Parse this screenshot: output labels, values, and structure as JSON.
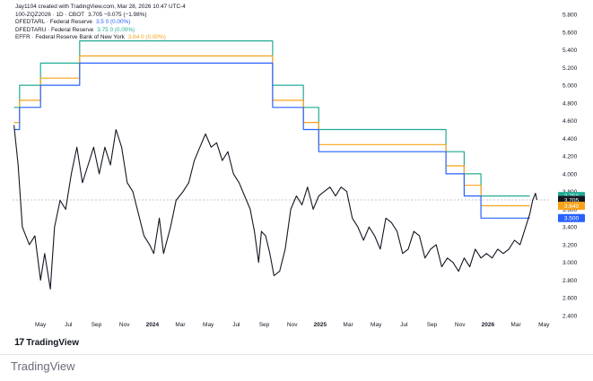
{
  "header": {
    "credit": "Jay1104 created with TradingView.com, Mar 28, 2026 10:47 UTC-4"
  },
  "legend": [
    {
      "label": "100-ZQZ2026 · 1D · CBOT",
      "value": "3.705 −0.075 (−1.98%)",
      "color": "#131722"
    },
    {
      "label": "DFEDTARL · Federal Reserve",
      "value": "3.5 0 (0.00%)",
      "color": "#2962ff"
    },
    {
      "label": "DFEDTARU · Federal Reserve",
      "value": "3.75 0 (0.00%)",
      "color": "#22ab94"
    },
    {
      "label": "EFFR · Federal Reserve Bank of New York",
      "value": "3.64 0 (0.00%)",
      "color": "#f7a21b"
    }
  ],
  "footer": {
    "logo_text": "TradingView",
    "logo_mark": "17",
    "wordmark": "TradingView"
  },
  "chart_data": {
    "type": "line",
    "ylim": [
      2.4,
      5.8
    ],
    "y_ticks": [
      "5.800",
      "5.600",
      "5.400",
      "5.200",
      "5.000",
      "4.800",
      "4.600",
      "4.400",
      "4.200",
      "4.000",
      "3.800",
      "3.600",
      "3.400",
      "3.200",
      "3.000",
      "2.800",
      "2.600",
      "2.400"
    ],
    "x_range": [
      0,
      38.5
    ],
    "x_ticks": [
      {
        "t": 2,
        "label": "May"
      },
      {
        "t": 4,
        "label": "Jul"
      },
      {
        "t": 6,
        "label": "Sep"
      },
      {
        "t": 8,
        "label": "Nov"
      },
      {
        "t": 10,
        "label": "2024"
      },
      {
        "t": 12,
        "label": "Mar"
      },
      {
        "t": 14,
        "label": "May"
      },
      {
        "t": 16,
        "label": "Jul"
      },
      {
        "t": 18,
        "label": "Sep"
      },
      {
        "t": 20,
        "label": "Nov"
      },
      {
        "t": 22,
        "label": "2025"
      },
      {
        "t": 24,
        "label": "Mar"
      },
      {
        "t": 26,
        "label": "May"
      },
      {
        "t": 28,
        "label": "Jul"
      },
      {
        "t": 30,
        "label": "Sep"
      },
      {
        "t": 32,
        "label": "Nov"
      },
      {
        "t": 34,
        "label": "2026"
      },
      {
        "t": 36,
        "label": "Mar"
      },
      {
        "t": 38,
        "label": "May"
      }
    ],
    "series": [
      {
        "name": "DFEDTARU",
        "color": "#22ab94",
        "step": true,
        "points": [
          [
            0.1,
            4.75
          ],
          [
            0.5,
            4.75
          ],
          [
            0.5,
            5.0
          ],
          [
            2.0,
            5.0
          ],
          [
            2.0,
            5.25
          ],
          [
            4.8,
            5.25
          ],
          [
            4.8,
            5.5
          ],
          [
            18.6,
            5.5
          ],
          [
            18.6,
            5.0
          ],
          [
            20.8,
            5.0
          ],
          [
            20.8,
            4.75
          ],
          [
            21.9,
            4.75
          ],
          [
            21.9,
            4.5
          ],
          [
            31.0,
            4.5
          ],
          [
            31.0,
            4.25
          ],
          [
            32.3,
            4.25
          ],
          [
            32.3,
            4.0
          ],
          [
            33.5,
            4.0
          ],
          [
            33.5,
            3.75
          ],
          [
            37.0,
            3.75
          ]
        ]
      },
      {
        "name": "EFFR",
        "color": "#f7a21b",
        "step": true,
        "points": [
          [
            0.1,
            4.58
          ],
          [
            0.5,
            4.58
          ],
          [
            0.5,
            4.83
          ],
          [
            2.0,
            4.83
          ],
          [
            2.0,
            5.08
          ],
          [
            4.8,
            5.08
          ],
          [
            4.8,
            5.33
          ],
          [
            18.6,
            5.33
          ],
          [
            18.6,
            4.83
          ],
          [
            20.8,
            4.83
          ],
          [
            20.8,
            4.58
          ],
          [
            21.9,
            4.58
          ],
          [
            21.9,
            4.33
          ],
          [
            31.0,
            4.33
          ],
          [
            31.0,
            4.09
          ],
          [
            32.3,
            4.09
          ],
          [
            32.3,
            3.87
          ],
          [
            33.5,
            3.87
          ],
          [
            33.5,
            3.64
          ],
          [
            37.0,
            3.64
          ]
        ]
      },
      {
        "name": "DFEDTARL",
        "color": "#2962ff",
        "step": true,
        "points": [
          [
            0.1,
            4.5
          ],
          [
            0.5,
            4.5
          ],
          [
            0.5,
            4.75
          ],
          [
            2.0,
            4.75
          ],
          [
            2.0,
            5.0
          ],
          [
            4.8,
            5.0
          ],
          [
            4.8,
            5.25
          ],
          [
            18.6,
            5.25
          ],
          [
            18.6,
            4.75
          ],
          [
            20.8,
            4.75
          ],
          [
            20.8,
            4.5
          ],
          [
            21.9,
            4.5
          ],
          [
            21.9,
            4.25
          ],
          [
            31.0,
            4.25
          ],
          [
            31.0,
            4.0
          ],
          [
            32.3,
            4.0
          ],
          [
            32.3,
            3.75
          ],
          [
            33.5,
            3.75
          ],
          [
            33.5,
            3.5
          ],
          [
            37.0,
            3.5
          ]
        ]
      },
      {
        "name": "100-ZQZ2026",
        "color": "#131722",
        "step": false,
        "points": [
          [
            0.1,
            4.55
          ],
          [
            0.4,
            4.1
          ],
          [
            0.7,
            3.4
          ],
          [
            1.2,
            3.2
          ],
          [
            1.6,
            3.3
          ],
          [
            2.0,
            2.8
          ],
          [
            2.3,
            3.1
          ],
          [
            2.7,
            2.7
          ],
          [
            3.0,
            3.4
          ],
          [
            3.4,
            3.7
          ],
          [
            3.8,
            3.6
          ],
          [
            4.2,
            4.0
          ],
          [
            4.6,
            4.3
          ],
          [
            5.0,
            3.9
          ],
          [
            5.4,
            4.1
          ],
          [
            5.8,
            4.3
          ],
          [
            6.2,
            4.0
          ],
          [
            6.6,
            4.3
          ],
          [
            7.0,
            4.1
          ],
          [
            7.4,
            4.5
          ],
          [
            7.8,
            4.3
          ],
          [
            8.2,
            3.9
          ],
          [
            8.6,
            3.8
          ],
          [
            9.0,
            3.55
          ],
          [
            9.4,
            3.3
          ],
          [
            9.8,
            3.2
          ],
          [
            10.1,
            3.1
          ],
          [
            10.5,
            3.5
          ],
          [
            10.8,
            3.1
          ],
          [
            11.3,
            3.4
          ],
          [
            11.7,
            3.7
          ],
          [
            12.2,
            3.8
          ],
          [
            12.6,
            3.9
          ],
          [
            13.0,
            4.15
          ],
          [
            13.4,
            4.3
          ],
          [
            13.8,
            4.45
          ],
          [
            14.2,
            4.3
          ],
          [
            14.6,
            4.35
          ],
          [
            15.0,
            4.15
          ],
          [
            15.4,
            4.25
          ],
          [
            15.8,
            4.0
          ],
          [
            16.2,
            3.9
          ],
          [
            16.6,
            3.75
          ],
          [
            17.0,
            3.6
          ],
          [
            17.3,
            3.35
          ],
          [
            17.6,
            3.0
          ],
          [
            17.8,
            3.35
          ],
          [
            18.1,
            3.3
          ],
          [
            18.4,
            3.1
          ],
          [
            18.7,
            2.85
          ],
          [
            19.1,
            2.9
          ],
          [
            19.5,
            3.15
          ],
          [
            19.9,
            3.6
          ],
          [
            20.3,
            3.75
          ],
          [
            20.7,
            3.65
          ],
          [
            21.1,
            3.85
          ],
          [
            21.5,
            3.6
          ],
          [
            21.9,
            3.75
          ],
          [
            22.3,
            3.8
          ],
          [
            22.7,
            3.85
          ],
          [
            23.1,
            3.75
          ],
          [
            23.5,
            3.85
          ],
          [
            23.9,
            3.8
          ],
          [
            24.3,
            3.5
          ],
          [
            24.7,
            3.4
          ],
          [
            25.1,
            3.25
          ],
          [
            25.5,
            3.4
          ],
          [
            25.9,
            3.3
          ],
          [
            26.3,
            3.15
          ],
          [
            26.7,
            3.5
          ],
          [
            27.1,
            3.45
          ],
          [
            27.5,
            3.35
          ],
          [
            27.9,
            3.1
          ],
          [
            28.3,
            3.15
          ],
          [
            28.7,
            3.35
          ],
          [
            29.1,
            3.3
          ],
          [
            29.5,
            3.05
          ],
          [
            29.9,
            3.15
          ],
          [
            30.3,
            3.2
          ],
          [
            30.7,
            2.95
          ],
          [
            31.1,
            3.05
          ],
          [
            31.5,
            3.0
          ],
          [
            31.9,
            2.9
          ],
          [
            32.3,
            3.05
          ],
          [
            32.7,
            2.95
          ],
          [
            33.1,
            3.15
          ],
          [
            33.5,
            3.05
          ],
          [
            33.9,
            3.1
          ],
          [
            34.3,
            3.05
          ],
          [
            34.7,
            3.15
          ],
          [
            35.1,
            3.1
          ],
          [
            35.5,
            3.15
          ],
          [
            35.9,
            3.25
          ],
          [
            36.3,
            3.2
          ],
          [
            36.5,
            3.3
          ],
          [
            36.8,
            3.45
          ],
          [
            37.0,
            3.55
          ],
          [
            37.2,
            3.7
          ],
          [
            37.4,
            3.78
          ],
          [
            37.5,
            3.705
          ]
        ]
      }
    ],
    "price_labels": [
      {
        "name": "DFEDTARU",
        "text": "3.750",
        "value": 3.75,
        "color": "#22ab94"
      },
      {
        "name": "100-ZQZ2026",
        "text": "3.705",
        "value": 3.705,
        "color": "#131722"
      },
      {
        "name": "EFFR",
        "text": "3.640",
        "value": 3.64,
        "color": "#f7a21b"
      },
      {
        "name": "DFEDTARL",
        "text": "3.500",
        "value": 3.5,
        "color": "#2962ff"
      }
    ],
    "reference_line": 3.705
  }
}
